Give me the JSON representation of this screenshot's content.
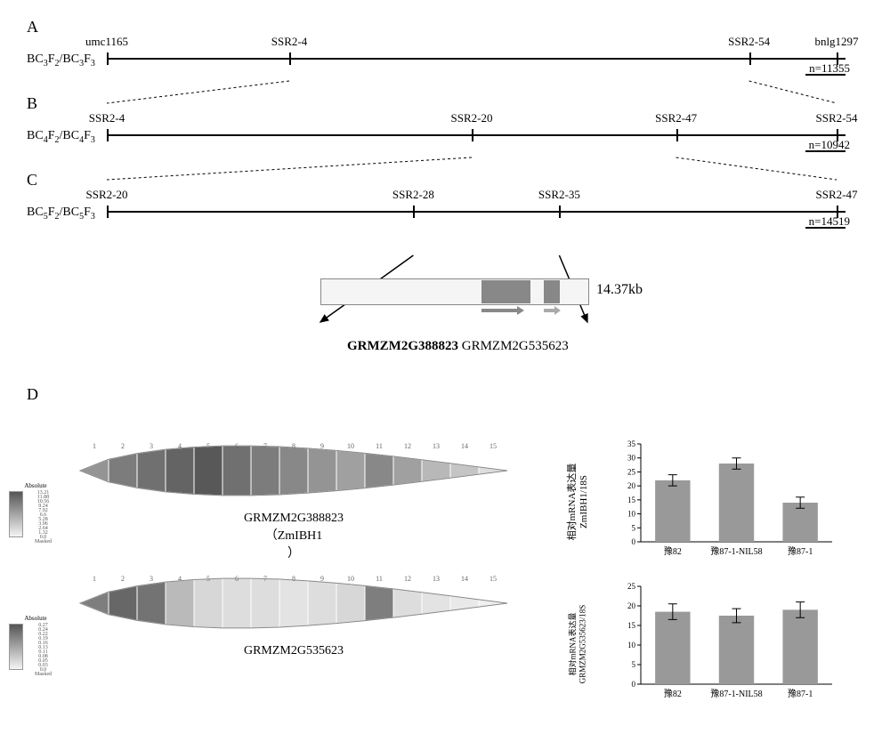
{
  "panelA": {
    "label": "A",
    "population": "BC₃F₂/BC₃F₃",
    "markers": [
      {
        "pos": 0,
        "label": "umc1165"
      },
      {
        "pos": 25,
        "label": "SSR2-4"
      },
      {
        "pos": 88,
        "label": "SSR2-54"
      },
      {
        "pos": 100,
        "label": "bnlg1297"
      }
    ],
    "n": "n=11355"
  },
  "panelB": {
    "label": "B",
    "population": "BC₄F₂/BC₄F₃",
    "markers": [
      {
        "pos": 0,
        "label": "SSR2-4"
      },
      {
        "pos": 50,
        "label": "SSR2-20"
      },
      {
        "pos": 78,
        "label": "SSR2-47"
      },
      {
        "pos": 100,
        "label": "SSR2-54"
      }
    ],
    "n": "n=10942"
  },
  "panelC": {
    "label": "C",
    "population": "BC₅F₂/BC₅F₃",
    "markers": [
      {
        "pos": 0,
        "label": "SSR2-20"
      },
      {
        "pos": 42,
        "label": "SSR2-28"
      },
      {
        "pos": 62,
        "label": "SSR2-35"
      },
      {
        "pos": 100,
        "label": "SSR2-47"
      }
    ],
    "n": "n=14519"
  },
  "geneRegion": {
    "sizeLabel": "14.37kb",
    "gene1": "GRMZM2G388823",
    "gene1Aka": "(ZmIBH1\n)",
    "gene2": "GRMZM2G535623"
  },
  "panelD": {
    "label": "D",
    "leaves": [
      {
        "label": "GRMZM2G388823",
        "sublabel": "（ZmIBH1",
        "sublabel2": "）",
        "segments": [
          8,
          10,
          11,
          12,
          13,
          11,
          10,
          9,
          8,
          7,
          9,
          7,
          5,
          4,
          2
        ],
        "legendTitle": "Absolute",
        "legendTicks": [
          "13.21",
          "11.88",
          "10.56",
          "9.24",
          "7.92",
          "6.6",
          "5.28",
          "3.96",
          "2.64",
          "1.32",
          "0.0",
          "Masked"
        ]
      },
      {
        "label": "GRMZM2G535623",
        "sublabel": "",
        "segments": [
          0.2,
          0.24,
          0.22,
          0.1,
          0.05,
          0.04,
          0.04,
          0.03,
          0.04,
          0.05,
          0.2,
          0.04,
          0.03,
          0.02,
          0.01
        ],
        "legendTitle": "Absolute",
        "legendTicks": [
          "0.27",
          "0.24",
          "0.22",
          "0.19",
          "0.16",
          "0.13",
          "0.11",
          "0.08",
          "0.05",
          "0.03",
          "0.0",
          "Masked"
        ]
      }
    ],
    "charts": [
      {
        "yLabel": "相对mRNA表达量\nZmIBH1/18S",
        "ylim": [
          0,
          35
        ],
        "ytickStep": 5,
        "bars": [
          {
            "label": "豫82",
            "value": 22,
            "err": 2
          },
          {
            "label": "豫87-1-NIL58",
            "value": 28,
            "err": 2
          },
          {
            "label": "豫87-1",
            "value": 14,
            "err": 2
          }
        ],
        "barColor": "#999999"
      },
      {
        "yLabel": "相对mRNA表达量\nGRMZM2G535623/18S",
        "ylim": [
          0,
          25
        ],
        "ytickStep": 5,
        "bars": [
          {
            "label": "豫82",
            "value": 18.5,
            "err": 2
          },
          {
            "label": "豫87-1-NIL58",
            "value": 17.5,
            "err": 1.8
          },
          {
            "label": "豫87-1",
            "value": 19,
            "err": 2
          }
        ],
        "barColor": "#999999"
      }
    ]
  },
  "colors": {
    "line": "#000000",
    "shade": [
      "#f0f0f0",
      "#555555"
    ]
  }
}
